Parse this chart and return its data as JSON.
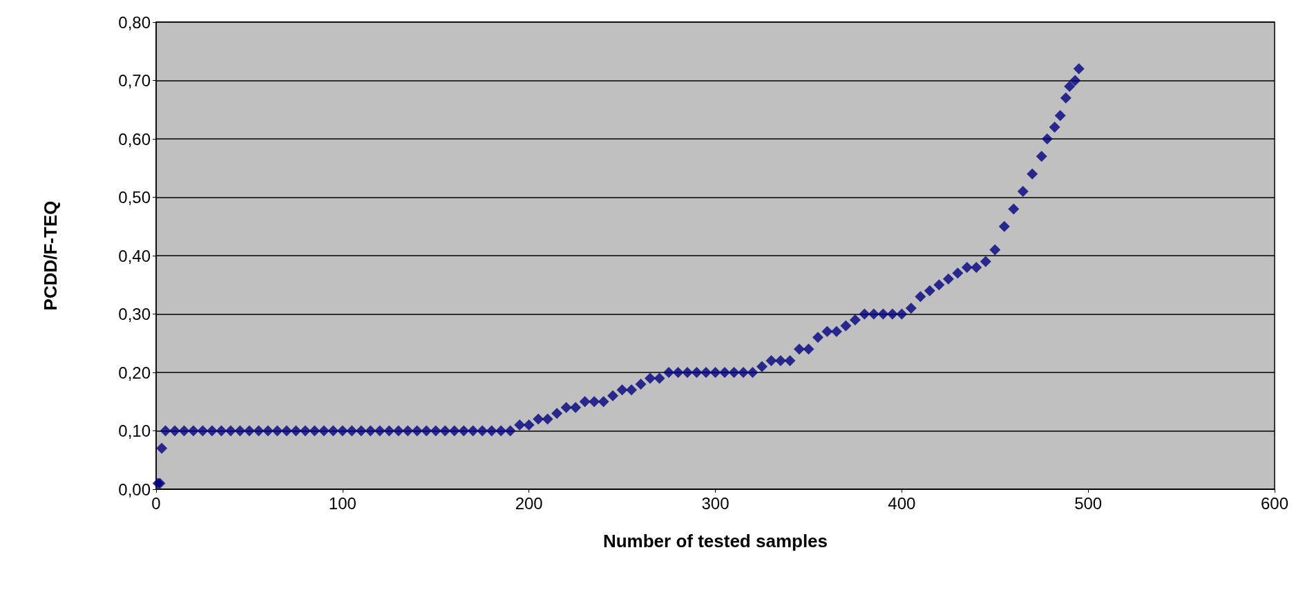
{
  "chart_data": {
    "type": "scatter",
    "xlabel": "Number of tested samples",
    "ylabel": "PCDD/F-TEQ",
    "marker": "diamond",
    "grid": "y",
    "xlim": [
      0,
      600
    ],
    "xticks": [
      0,
      100,
      200,
      300,
      400,
      500,
      600
    ],
    "ylim": [
      0,
      0.8
    ],
    "yticks": [
      {
        "value": 0,
        "label": "0,00"
      },
      {
        "value": 0.1,
        "label": "0,10"
      },
      {
        "value": 0.2,
        "label": "0,20"
      },
      {
        "value": 0.3,
        "label": "0,30"
      },
      {
        "value": 0.4,
        "label": "0,40"
      },
      {
        "value": 0.5,
        "label": "0,50"
      },
      {
        "value": 0.6,
        "label": "0,60"
      },
      {
        "value": 0.7,
        "label": "0,70"
      },
      {
        "value": 0.8,
        "label": "0,80"
      }
    ],
    "series": [
      {
        "color": "#000080",
        "x": [
          1,
          2,
          3,
          5,
          10,
          15,
          20,
          25,
          30,
          35,
          40,
          45,
          50,
          55,
          60,
          65,
          70,
          75,
          80,
          85,
          90,
          95,
          100,
          105,
          110,
          115,
          120,
          125,
          130,
          135,
          140,
          145,
          150,
          155,
          160,
          165,
          170,
          175,
          180,
          185,
          190,
          195,
          200,
          205,
          210,
          215,
          220,
          225,
          230,
          235,
          240,
          245,
          250,
          255,
          260,
          265,
          270,
          275,
          280,
          285,
          290,
          295,
          300,
          305,
          310,
          315,
          320,
          325,
          330,
          335,
          340,
          345,
          350,
          355,
          360,
          365,
          370,
          375,
          380,
          385,
          390,
          395,
          400,
          405,
          410,
          415,
          420,
          425,
          430,
          435,
          440,
          445,
          450,
          455,
          460,
          465,
          470,
          475,
          478,
          482,
          485,
          488,
          490,
          493,
          495
        ],
        "values": [
          0.01,
          0.01,
          0.07,
          0.1,
          0.1,
          0.1,
          0.1,
          0.1,
          0.1,
          0.1,
          0.1,
          0.1,
          0.1,
          0.1,
          0.1,
          0.1,
          0.1,
          0.1,
          0.1,
          0.1,
          0.1,
          0.1,
          0.1,
          0.1,
          0.1,
          0.1,
          0.1,
          0.1,
          0.1,
          0.1,
          0.1,
          0.1,
          0.1,
          0.1,
          0.1,
          0.1,
          0.1,
          0.1,
          0.1,
          0.1,
          0.1,
          0.11,
          0.11,
          0.12,
          0.12,
          0.13,
          0.14,
          0.14,
          0.15,
          0.15,
          0.15,
          0.16,
          0.17,
          0.17,
          0.18,
          0.19,
          0.19,
          0.2,
          0.2,
          0.2,
          0.2,
          0.2,
          0.2,
          0.2,
          0.2,
          0.2,
          0.2,
          0.21,
          0.22,
          0.22,
          0.22,
          0.24,
          0.24,
          0.26,
          0.27,
          0.27,
          0.28,
          0.29,
          0.3,
          0.3,
          0.3,
          0.3,
          0.3,
          0.31,
          0.33,
          0.34,
          0.35,
          0.36,
          0.37,
          0.38,
          0.38,
          0.39,
          0.41,
          0.45,
          0.48,
          0.51,
          0.54,
          0.57,
          0.6,
          0.62,
          0.64,
          0.67,
          0.69,
          0.7,
          0.72
        ]
      }
    ]
  }
}
